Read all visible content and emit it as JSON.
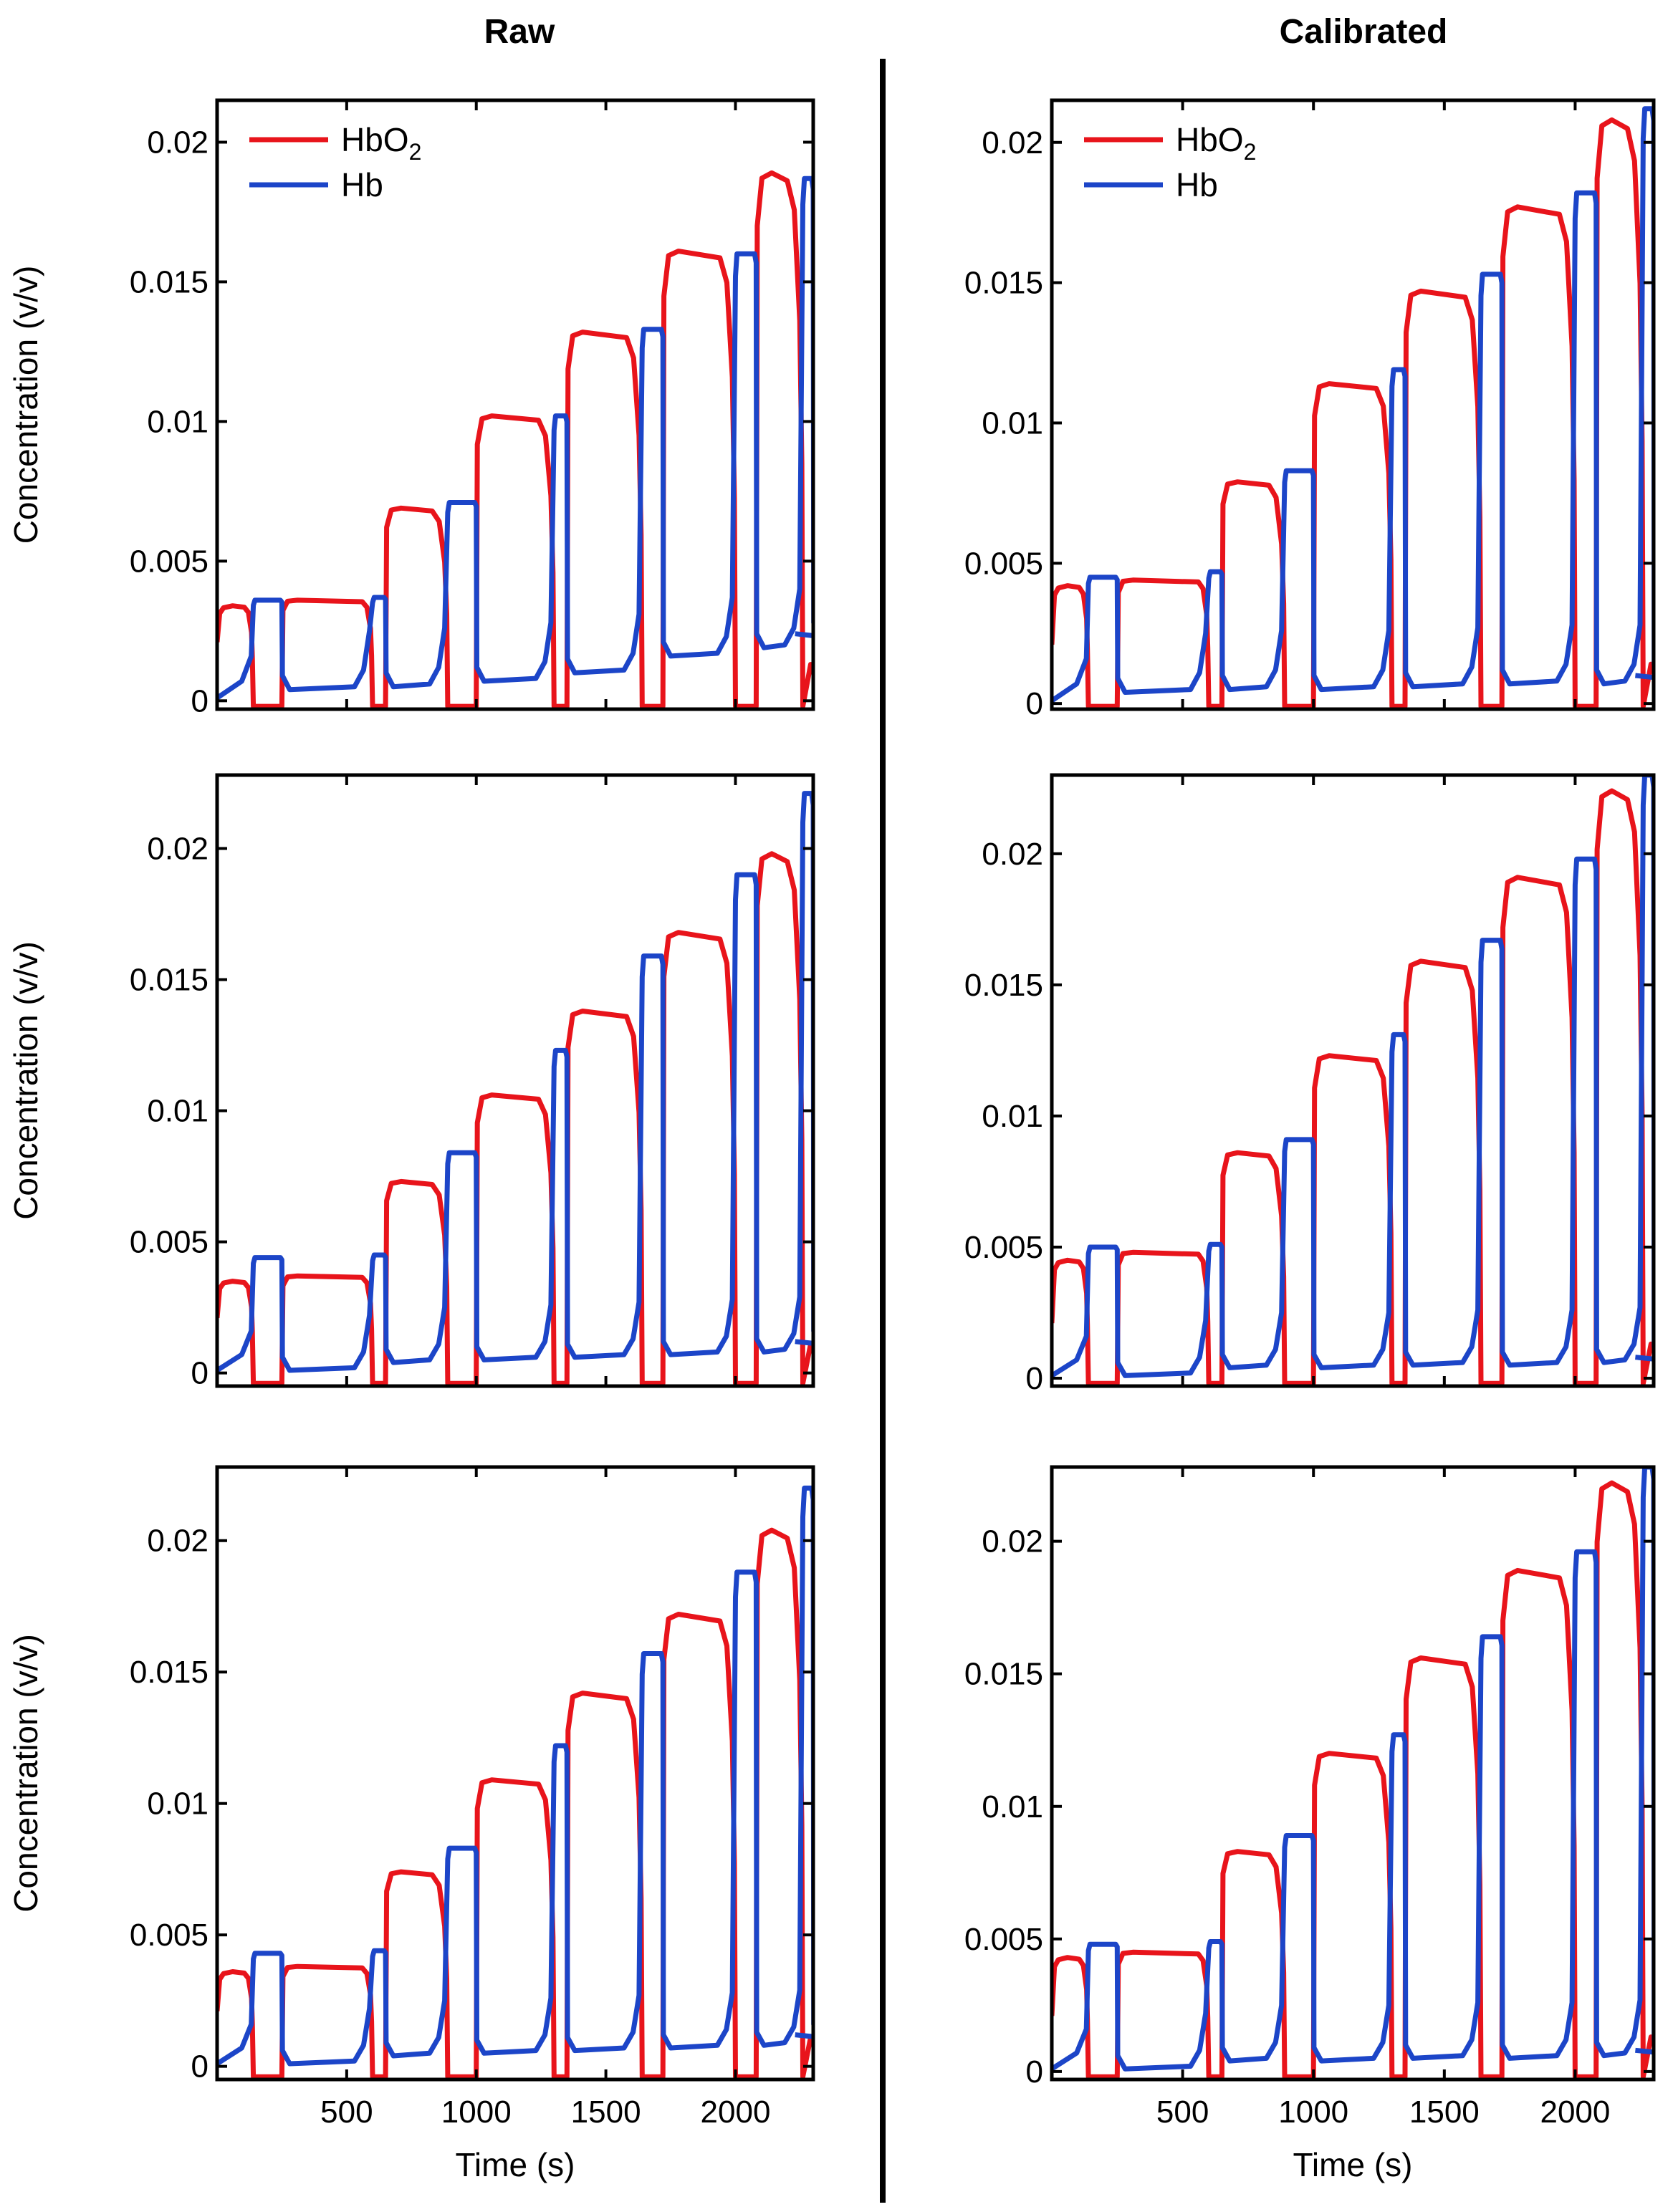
{
  "column_titles": [
    "Raw",
    "Calibrated"
  ],
  "legend": {
    "hbo2": {
      "base": "HbO",
      "sub": "2"
    },
    "hb": {
      "label": "Hb"
    }
  },
  "colors": {
    "hbo2": "#e8141b",
    "hb": "#1c45c8"
  },
  "x_axis": {
    "label": "Time (s)",
    "ticks": [
      "500",
      "1000",
      "1500",
      "2000"
    ]
  },
  "y_axis": {
    "label": "Concentration (v/v)",
    "ticks": [
      "0",
      "0.005",
      "0.01",
      "0.015",
      "0.02"
    ]
  },
  "chart_data": [
    {
      "type": "line",
      "panel": "raw-row1",
      "title": "Raw",
      "xlabel": "",
      "ylabel": "Concentration (v/v)",
      "xlim": [
        0,
        2300
      ],
      "ylim": [
        -0.0003,
        0.0215
      ],
      "x_ticks": [
        500,
        1000,
        1500,
        2000
      ],
      "y_ticks": [
        0,
        0.005,
        0.01,
        0.015,
        0.02
      ],
      "series": [
        {
          "name": "HbO2",
          "levels": [
            0.0034,
            0.0036,
            0.0069,
            0.0102,
            0.0132,
            0.0161,
            0.0189
          ]
        },
        {
          "name": "Hb",
          "levels": [
            0.0036,
            0.0037,
            0.0071,
            0.0102,
            0.0133,
            0.016,
            0.0187
          ],
          "baselines": [
            0.0003,
            0.0004,
            0.0006,
            0.0009,
            0.0015,
            0.0018,
            0.0022
          ]
        }
      ]
    },
    {
      "type": "line",
      "panel": "raw-row2",
      "title": "",
      "xlabel": "",
      "ylabel": "Concentration (v/v)",
      "xlim": [
        0,
        2300
      ],
      "ylim": [
        -0.0005,
        0.0228
      ],
      "x_ticks": [
        500,
        1000,
        1500,
        2000
      ],
      "y_ticks": [
        0,
        0.005,
        0.01,
        0.015,
        0.02
      ],
      "series": [
        {
          "name": "HbO2",
          "levels": [
            0.0035,
            0.0037,
            0.0073,
            0.0106,
            0.0138,
            0.0168,
            0.0198
          ]
        },
        {
          "name": "Hb",
          "levels": [
            0.0044,
            0.0045,
            0.0084,
            0.0123,
            0.0159,
            0.019,
            0.0221
          ],
          "baselines": [
            0,
            0.0003,
            0.0004,
            0.0005,
            0.0006,
            0.0007,
            0.001
          ]
        }
      ]
    },
    {
      "type": "line",
      "panel": "raw-row3",
      "title": "",
      "xlabel": "Time (s)",
      "ylabel": "Concentration (v/v)",
      "xlim": [
        0,
        2300
      ],
      "ylim": [
        -0.0005,
        0.0228
      ],
      "x_ticks": [
        500,
        1000,
        1500,
        2000
      ],
      "y_ticks": [
        0,
        0.005,
        0.01,
        0.015,
        0.02
      ],
      "series": [
        {
          "name": "HbO2",
          "levels": [
            0.0036,
            0.0038,
            0.0074,
            0.0109,
            0.0142,
            0.0172,
            0.0204
          ]
        },
        {
          "name": "Hb",
          "levels": [
            0.0043,
            0.0044,
            0.0083,
            0.0122,
            0.0157,
            0.0188,
            0.022
          ],
          "baselines": [
            0,
            0.0003,
            0.0004,
            0.0005,
            0.0006,
            0.0007,
            0.001
          ]
        }
      ]
    },
    {
      "type": "line",
      "panel": "calibrated-row1",
      "title": "Calibrated",
      "xlabel": "",
      "ylabel": "",
      "xlim": [
        0,
        2300
      ],
      "ylim": [
        -0.0002,
        0.0215
      ],
      "x_ticks": [
        500,
        1000,
        1500,
        2000
      ],
      "y_ticks": [
        0,
        0.005,
        0.01,
        0.015,
        0.02
      ],
      "series": [
        {
          "name": "HbO2",
          "levels": [
            0.0042,
            0.0044,
            0.0079,
            0.0114,
            0.0147,
            0.0177,
            0.0208
          ]
        },
        {
          "name": "Hb",
          "levels": [
            0.0045,
            0.0047,
            0.0083,
            0.0119,
            0.0153,
            0.0182,
            0.0212
          ],
          "baselines": [
            0.0003,
            0.0004,
            0.0004,
            0.0005,
            0.0006,
            0.0006,
            0.0008
          ]
        }
      ]
    },
    {
      "type": "line",
      "panel": "calibrated-row2",
      "title": "",
      "xlabel": "",
      "ylabel": "",
      "xlim": [
        0,
        2300
      ],
      "ylim": [
        -0.0003,
        0.023
      ],
      "x_ticks": [
        500,
        1000,
        1500,
        2000
      ],
      "y_ticks": [
        0,
        0.005,
        0.01,
        0.015,
        0.02
      ],
      "series": [
        {
          "name": "HbO2",
          "levels": [
            0.0045,
            0.0048,
            0.0086,
            0.0123,
            0.0159,
            0.0191,
            0.0224
          ]
        },
        {
          "name": "Hb",
          "levels": [
            0.005,
            0.0051,
            0.0091,
            0.0131,
            0.0167,
            0.0198,
            0.023
          ],
          "baselines": [
            0,
            0.0003,
            0.0003,
            0.0004,
            0.0004,
            0.0005,
            0.0006
          ]
        }
      ]
    },
    {
      "type": "line",
      "panel": "calibrated-row3",
      "title": "",
      "xlabel": "Time (s)",
      "ylabel": "",
      "xlim": [
        0,
        2300
      ],
      "ylim": [
        -0.0003,
        0.0228
      ],
      "x_ticks": [
        500,
        1000,
        1500,
        2000
      ],
      "y_ticks": [
        0,
        0.005,
        0.01,
        0.015,
        0.02
      ],
      "series": [
        {
          "name": "HbO2",
          "levels": [
            0.0043,
            0.0045,
            0.0083,
            0.012,
            0.0156,
            0.0189,
            0.0222
          ]
        },
        {
          "name": "Hb",
          "levels": [
            0.0048,
            0.0049,
            0.0089,
            0.0127,
            0.0164,
            0.0196,
            0.0228
          ],
          "baselines": [
            0,
            0.0003,
            0.0003,
            0.0004,
            0.0004,
            0.0005,
            0.0006
          ]
        }
      ]
    }
  ]
}
